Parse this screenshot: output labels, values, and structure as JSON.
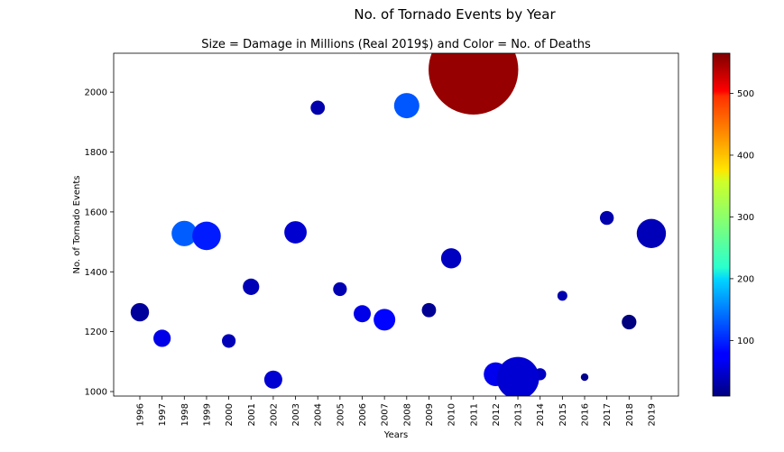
{
  "chart_data": {
    "type": "scatter",
    "title": "No. of Tornado Events by Year",
    "subtitle": "Size = Damage in Millions (Real 2019$) and Color = No. of Deaths",
    "xlabel": "Years",
    "ylabel": "No. of Tornado Events",
    "x_categories": [
      "1996",
      "1997",
      "1998",
      "1999",
      "2000",
      "2001",
      "2002",
      "2003",
      "2004",
      "2005",
      "2006",
      "2007",
      "2008",
      "2009",
      "2010",
      "2011",
      "2012",
      "2013",
      "2014",
      "2015",
      "2016",
      "2017",
      "2018",
      "2019"
    ],
    "y_ticks": [
      1000,
      1200,
      1400,
      1600,
      1800,
      2000
    ],
    "ylim": [
      985,
      2130
    ],
    "colorbar": {
      "colormap": "jet",
      "ticks": [
        100,
        200,
        300,
        400,
        500
      ],
      "range": [
        10,
        565
      ]
    },
    "points": [
      {
        "x": "1996",
        "y": 1265,
        "damage": 420,
        "deaths": 25
      },
      {
        "x": "1997",
        "y": 1178,
        "damage": 370,
        "deaths": 67
      },
      {
        "x": "1998",
        "y": 1528,
        "damage": 800,
        "deaths": 130
      },
      {
        "x": "1999",
        "y": 1520,
        "damage": 1000,
        "deaths": 94
      },
      {
        "x": "2000",
        "y": 1169,
        "damage": 230,
        "deaths": 41
      },
      {
        "x": "2001",
        "y": 1350,
        "damage": 330,
        "deaths": 40
      },
      {
        "x": "2002",
        "y": 1040,
        "damage": 400,
        "deaths": 55
      },
      {
        "x": "2003",
        "y": 1532,
        "damage": 620,
        "deaths": 54
      },
      {
        "x": "2004",
        "y": 1948,
        "damage": 250,
        "deaths": 35
      },
      {
        "x": "2005",
        "y": 1342,
        "damage": 230,
        "deaths": 38
      },
      {
        "x": "2006",
        "y": 1260,
        "damage": 360,
        "deaths": 67
      },
      {
        "x": "2007",
        "y": 1240,
        "damage": 580,
        "deaths": 81
      },
      {
        "x": "2008",
        "y": 1955,
        "damage": 780,
        "deaths": 126
      },
      {
        "x": "2009",
        "y": 1272,
        "damage": 250,
        "deaths": 21
      },
      {
        "x": "2010",
        "y": 1445,
        "damage": 500,
        "deaths": 45
      },
      {
        "x": "2011",
        "y": 2075,
        "damage": 9900,
        "deaths": 553
      },
      {
        "x": "2012",
        "y": 1058,
        "damage": 700,
        "deaths": 70
      },
      {
        "x": "2013",
        "y": 1045,
        "damage": 2200,
        "deaths": 55
      },
      {
        "x": "2014",
        "y": 1058,
        "damage": 180,
        "deaths": 47
      },
      {
        "x": "2015",
        "y": 1320,
        "damage": 120,
        "deaths": 36
      },
      {
        "x": "2016",
        "y": 1048,
        "damage": 70,
        "deaths": 18
      },
      {
        "x": "2017",
        "y": 1580,
        "damage": 240,
        "deaths": 35
      },
      {
        "x": "2018",
        "y": 1232,
        "damage": 260,
        "deaths": 10
      },
      {
        "x": "2019",
        "y": 1528,
        "damage": 1050,
        "deaths": 41
      }
    ]
  }
}
